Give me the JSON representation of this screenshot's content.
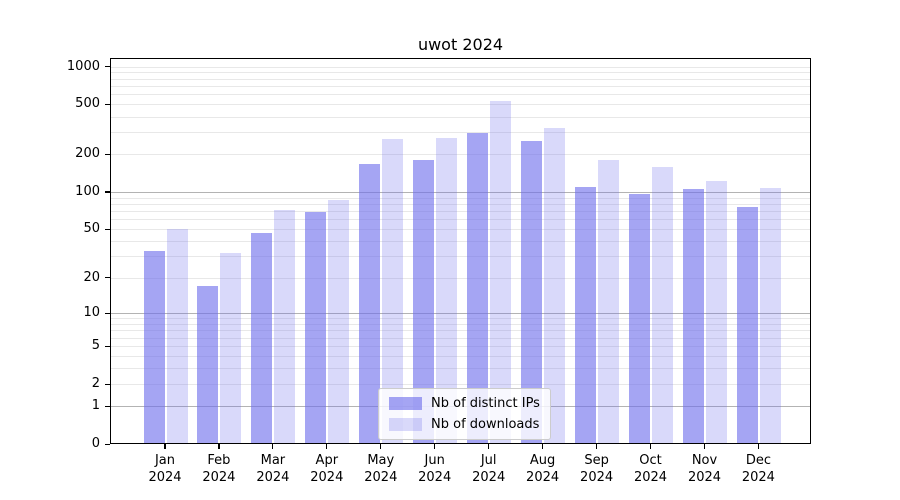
{
  "title": "uwot 2024",
  "chart_data": {
    "type": "bar",
    "title": "uwot 2024",
    "categories": [
      "Jan 2024",
      "Feb 2024",
      "Mar 2024",
      "Apr 2024",
      "May 2024",
      "Jun 2024",
      "Jul 2024",
      "Aug 2024",
      "Sep 2024",
      "Oct 2024",
      "Nov 2024",
      "Dec 2024"
    ],
    "x_tick_months": [
      "Jan",
      "Feb",
      "Mar",
      "Apr",
      "May",
      "Jun",
      "Jul",
      "Aug",
      "Sep",
      "Oct",
      "Nov",
      "Dec"
    ],
    "x_tick_year": "2024",
    "series": [
      {
        "name": "Nb of distinct IPs",
        "values": [
          33,
          17,
          47,
          69,
          167,
          180,
          295,
          254,
          110,
          97,
          106,
          75
        ]
      },
      {
        "name": "Nb of downloads",
        "values": [
          50,
          32,
          72,
          86,
          264,
          272,
          535,
          325,
          180,
          158,
          122,
          108
        ]
      }
    ],
    "xlabel": "",
    "ylabel": "",
    "yscale": "log1p",
    "yticks": [
      0,
      1,
      2,
      5,
      10,
      20,
      50,
      100,
      200,
      500,
      1000
    ],
    "ylim": [
      0,
      1120
    ],
    "grid": "on",
    "legend_position": "lower center"
  },
  "colors": {
    "bar_base": "110,110,235",
    "alpha_series_0": 0.62,
    "alpha_series_1": 0.26,
    "grid_minor": "#e8e8e8",
    "grid_major": "#b3b3b3",
    "spine": "#000000",
    "legend_border": "#cccccc"
  }
}
